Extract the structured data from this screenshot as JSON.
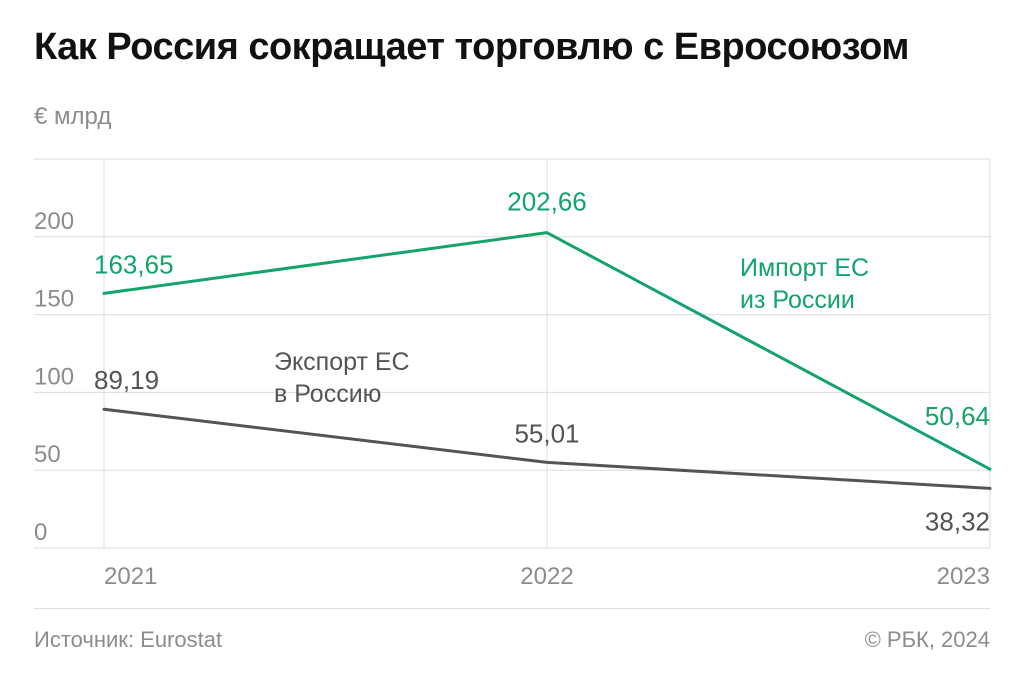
{
  "header": {
    "title": "Как Россия сокращает торговлю с Евросоюзом",
    "unit": "€ млрд"
  },
  "footer": {
    "source": "Источник: Eurostat",
    "copyright": "© РБК, 2024"
  },
  "colors": {
    "import": "#13a36b",
    "export": "#545454",
    "grid": "#dcdcdc",
    "axis_text": "#8c8c8c"
  },
  "chart_data": {
    "type": "line",
    "x": [
      "2021",
      "2022",
      "2023"
    ],
    "ylim": [
      0,
      250
    ],
    "yticks": [
      0,
      50,
      100,
      150,
      200
    ],
    "grid": true,
    "series": [
      {
        "key": "import",
        "name": "Импорт ЕС из России",
        "name_lines": [
          "Импорт ЕС",
          "из России"
        ],
        "values": [
          163.65,
          202.66,
          50.64
        ],
        "labels": [
          "163,65",
          "202,66",
          "50,64"
        ]
      },
      {
        "key": "export",
        "name": "Экспорт ЕС в Россию",
        "name_lines": [
          "Экспорт ЕС",
          "в Россию"
        ],
        "values": [
          89.19,
          55.01,
          38.32
        ],
        "labels": [
          "89,19",
          "55,01",
          "38,32"
        ]
      }
    ]
  }
}
